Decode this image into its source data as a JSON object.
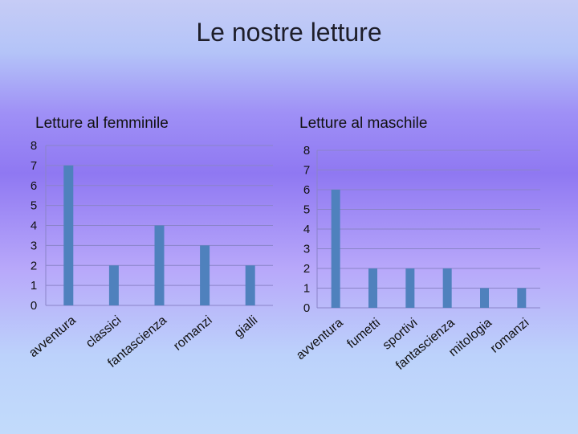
{
  "slide": {
    "title": "Le nostre letture"
  },
  "chart_data": [
    {
      "type": "bar",
      "title": "Letture al femminile",
      "categories": [
        "avventura",
        "classici",
        "fantascienza",
        "romanzi",
        "gialli"
      ],
      "values": [
        7,
        2,
        4,
        3,
        2
      ],
      "ylim": [
        0,
        8
      ],
      "yticks": [
        0,
        1,
        2,
        3,
        4,
        5,
        6,
        7,
        8
      ],
      "grid": true,
      "bar_color": "#4f81bd"
    },
    {
      "type": "bar",
      "title": "Letture al maschile",
      "categories": [
        "avventura",
        "fumetti",
        "sportivi",
        "fantascienza",
        "mitologia",
        "romanzi"
      ],
      "values": [
        6,
        2,
        2,
        2,
        1,
        1
      ],
      "ylim": [
        0,
        8
      ],
      "yticks": [
        0,
        1,
        2,
        3,
        4,
        5,
        6,
        7,
        8
      ],
      "grid": true,
      "bar_color": "#4f81bd"
    }
  ]
}
